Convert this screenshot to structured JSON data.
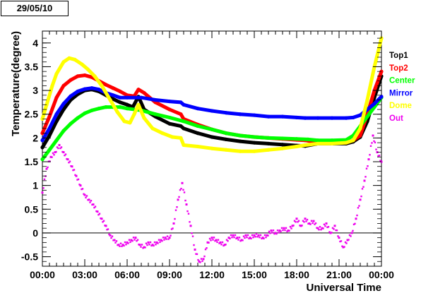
{
  "date_box": "29/05/10",
  "chart_data": {
    "type": "scatter",
    "title": "",
    "xlabel": "Universal Time",
    "ylabel": "Temperature(degree)",
    "xlim": [
      0,
      24
    ],
    "ylim": [
      -0.7,
      4.25
    ],
    "grid": false,
    "zero_line": 0,
    "legend_placement": "right",
    "x_tick_labels": [
      "00:00",
      "03:00",
      "06:00",
      "09:00",
      "12:00",
      "15:00",
      "18:00",
      "21:00",
      "00:00"
    ],
    "x_ticks": [
      0,
      3,
      6,
      9,
      12,
      15,
      18,
      21,
      24
    ],
    "y_tick_labels": [
      "-0.5",
      "0",
      "0.5",
      "1",
      "1.5",
      "2",
      "2.5",
      "3",
      "3.5",
      "4"
    ],
    "y_ticks": [
      -0.5,
      0,
      0.5,
      1,
      1.5,
      2,
      2.5,
      3,
      3.5,
      4
    ],
    "series": [
      {
        "name": "Top1",
        "color": "#000000",
        "x": [
          0,
          0.5,
          1,
          1.5,
          2,
          2.5,
          3,
          3.5,
          4,
          4.5,
          5,
          5.5,
          6,
          6.4,
          6.8,
          7.2,
          8,
          9,
          9.8,
          10,
          11,
          12,
          13,
          14,
          15,
          16,
          17,
          18,
          18.6,
          19.5,
          20.5,
          21.5,
          22,
          22.5,
          23,
          23.5,
          24
        ],
        "values": [
          1.8,
          2.05,
          2.35,
          2.6,
          2.8,
          2.92,
          3.0,
          3.02,
          2.98,
          2.9,
          2.82,
          2.75,
          2.7,
          2.65,
          2.87,
          2.6,
          2.45,
          2.3,
          2.25,
          2.2,
          2.1,
          2.02,
          1.97,
          1.93,
          1.9,
          1.88,
          1.86,
          1.84,
          1.83,
          1.88,
          1.88,
          1.88,
          1.92,
          2.02,
          2.35,
          2.85,
          3.3
        ]
      },
      {
        "name": "Top2",
        "color": "#ff0000",
        "x": [
          0,
          0.5,
          1,
          1.5,
          2,
          2.5,
          3,
          3.5,
          4,
          4.5,
          5,
          5.5,
          6,
          6.5,
          6.8,
          7.2,
          8,
          9,
          9.8,
          10,
          11,
          12,
          13,
          14,
          15,
          16,
          17,
          18,
          18.6,
          19.5,
          20.5,
          21.5,
          22,
          22.5,
          23,
          23.5,
          24
        ],
        "values": [
          2.1,
          2.45,
          2.85,
          3.1,
          3.22,
          3.3,
          3.32,
          3.28,
          3.2,
          3.12,
          3.05,
          2.98,
          2.9,
          2.88,
          3.02,
          2.95,
          2.75,
          2.6,
          2.5,
          2.4,
          2.28,
          2.18,
          2.1,
          2.05,
          2.02,
          2.0,
          1.98,
          1.96,
          1.95,
          1.9,
          1.9,
          1.9,
          1.95,
          2.05,
          2.5,
          3.0,
          3.4
        ]
      },
      {
        "name": "Center",
        "color": "#00ff00",
        "x": [
          0,
          0.5,
          1,
          1.5,
          2,
          2.5,
          3,
          3.5,
          4,
          4.5,
          5,
          5.5,
          6,
          7,
          8,
          9,
          10,
          11,
          12,
          13,
          14,
          15,
          16,
          17,
          18,
          18.8,
          19.5,
          20.5,
          21.5,
          22,
          22.5,
          23,
          23.5,
          24
        ],
        "values": [
          1.55,
          1.75,
          1.95,
          2.15,
          2.3,
          2.42,
          2.52,
          2.58,
          2.62,
          2.65,
          2.65,
          2.65,
          2.62,
          2.58,
          2.5,
          2.43,
          2.35,
          2.25,
          2.18,
          2.1,
          2.05,
          2.02,
          2.0,
          1.99,
          1.98,
          1.97,
          1.95,
          1.95,
          1.96,
          2.05,
          2.25,
          2.45,
          2.65,
          2.85
        ]
      },
      {
        "name": "Mirror",
        "color": "#0000ff",
        "x": [
          0,
          0.5,
          1,
          1.5,
          2,
          2.5,
          3,
          3.5,
          4,
          4.5,
          5,
          5.5,
          6,
          7,
          8,
          9,
          9.8,
          10,
          11,
          12,
          13,
          14,
          15,
          16,
          17,
          18,
          18.6,
          19.5,
          20.5,
          21.5,
          22,
          22.5,
          23,
          23.5,
          24
        ],
        "values": [
          1.95,
          2.2,
          2.5,
          2.72,
          2.88,
          2.98,
          3.03,
          3.05,
          3.02,
          2.95,
          2.9,
          2.85,
          2.85,
          2.85,
          2.8,
          2.77,
          2.75,
          2.7,
          2.62,
          2.57,
          2.53,
          2.5,
          2.48,
          2.45,
          2.45,
          2.43,
          2.42,
          2.42,
          2.42,
          2.42,
          2.43,
          2.48,
          2.6,
          2.72,
          2.87
        ]
      },
      {
        "name": "Dome",
        "color": "#ffff00",
        "x": [
          0,
          0.3,
          0.7,
          1,
          1.5,
          1.9,
          2.3,
          2.8,
          3.2,
          3.7,
          4.2,
          4.8,
          5.3,
          5.8,
          6.2,
          6.5,
          6.8,
          7.2,
          7.8,
          8.5,
          9.2,
          9.8,
          10,
          11,
          12,
          13,
          14,
          15,
          16,
          17,
          18,
          18.6,
          19.5,
          20.5,
          21.5,
          22,
          22.5,
          23,
          23.5,
          24
        ],
        "values": [
          2.4,
          2.7,
          3.1,
          3.35,
          3.6,
          3.68,
          3.65,
          3.55,
          3.45,
          3.3,
          3.1,
          2.8,
          2.55,
          2.35,
          2.32,
          2.5,
          2.7,
          2.42,
          2.2,
          2.1,
          2.02,
          2.0,
          1.85,
          1.82,
          1.78,
          1.75,
          1.72,
          1.72,
          1.75,
          1.78,
          1.82,
          1.85,
          1.88,
          1.88,
          1.9,
          1.95,
          2.2,
          2.8,
          3.5,
          4.1
        ]
      },
      {
        "name": "Out",
        "color": "#ee00ee",
        "x": [
          0,
          0.3,
          0.6,
          0.9,
          1.2,
          1.5,
          1.8,
          2.1,
          2.4,
          2.7,
          3.0,
          3.3,
          3.6,
          3.9,
          4.2,
          4.5,
          4.8,
          5.1,
          5.4,
          5.7,
          6.0,
          6.3,
          6.6,
          6.9,
          7.2,
          7.5,
          7.8,
          8.1,
          8.4,
          8.7,
          9.0,
          9.3,
          9.6,
          9.9,
          10.2,
          10.5,
          10.8,
          11.1,
          11.4,
          11.7,
          12.0,
          12.3,
          12.6,
          12.9,
          13.2,
          13.5,
          13.8,
          14.1,
          14.4,
          14.7,
          15.0,
          15.3,
          15.6,
          15.9,
          16.2,
          16.5,
          16.8,
          17.1,
          17.4,
          17.7,
          18.0,
          18.3,
          18.6,
          18.9,
          19.2,
          19.5,
          19.8,
          20.1,
          20.4,
          20.7,
          21.0,
          21.3,
          21.6,
          21.9,
          22.2,
          22.5,
          22.8,
          23.1,
          23.4,
          23.7,
          24.0
        ],
        "values": [
          0.85,
          1.35,
          1.6,
          1.7,
          1.85,
          1.7,
          1.55,
          1.4,
          1.2,
          1.0,
          0.8,
          0.7,
          0.6,
          0.45,
          0.3,
          0.15,
          -0.05,
          -0.15,
          -0.25,
          -0.25,
          -0.2,
          -0.15,
          -0.1,
          -0.25,
          -0.3,
          -0.2,
          -0.25,
          -0.2,
          -0.15,
          -0.1,
          -0.1,
          0.2,
          0.7,
          1.05,
          0.6,
          0.15,
          -0.35,
          -0.6,
          -0.55,
          -0.2,
          -0.1,
          -0.15,
          -0.2,
          -0.25,
          -0.1,
          -0.05,
          -0.1,
          -0.15,
          -0.05,
          -0.1,
          -0.05,
          -0.05,
          -0.1,
          -0.05,
          0.05,
          0.0,
          0.05,
          0.1,
          0.05,
          0.15,
          0.3,
          0.15,
          0.3,
          0.2,
          0.25,
          0.1,
          0.1,
          0.2,
          0.0,
          0.15,
          -0.1,
          -0.3,
          -0.15,
          0.0,
          0.3,
          0.7,
          1.1,
          1.55,
          2.05,
          1.7,
          1.5
        ]
      }
    ]
  }
}
